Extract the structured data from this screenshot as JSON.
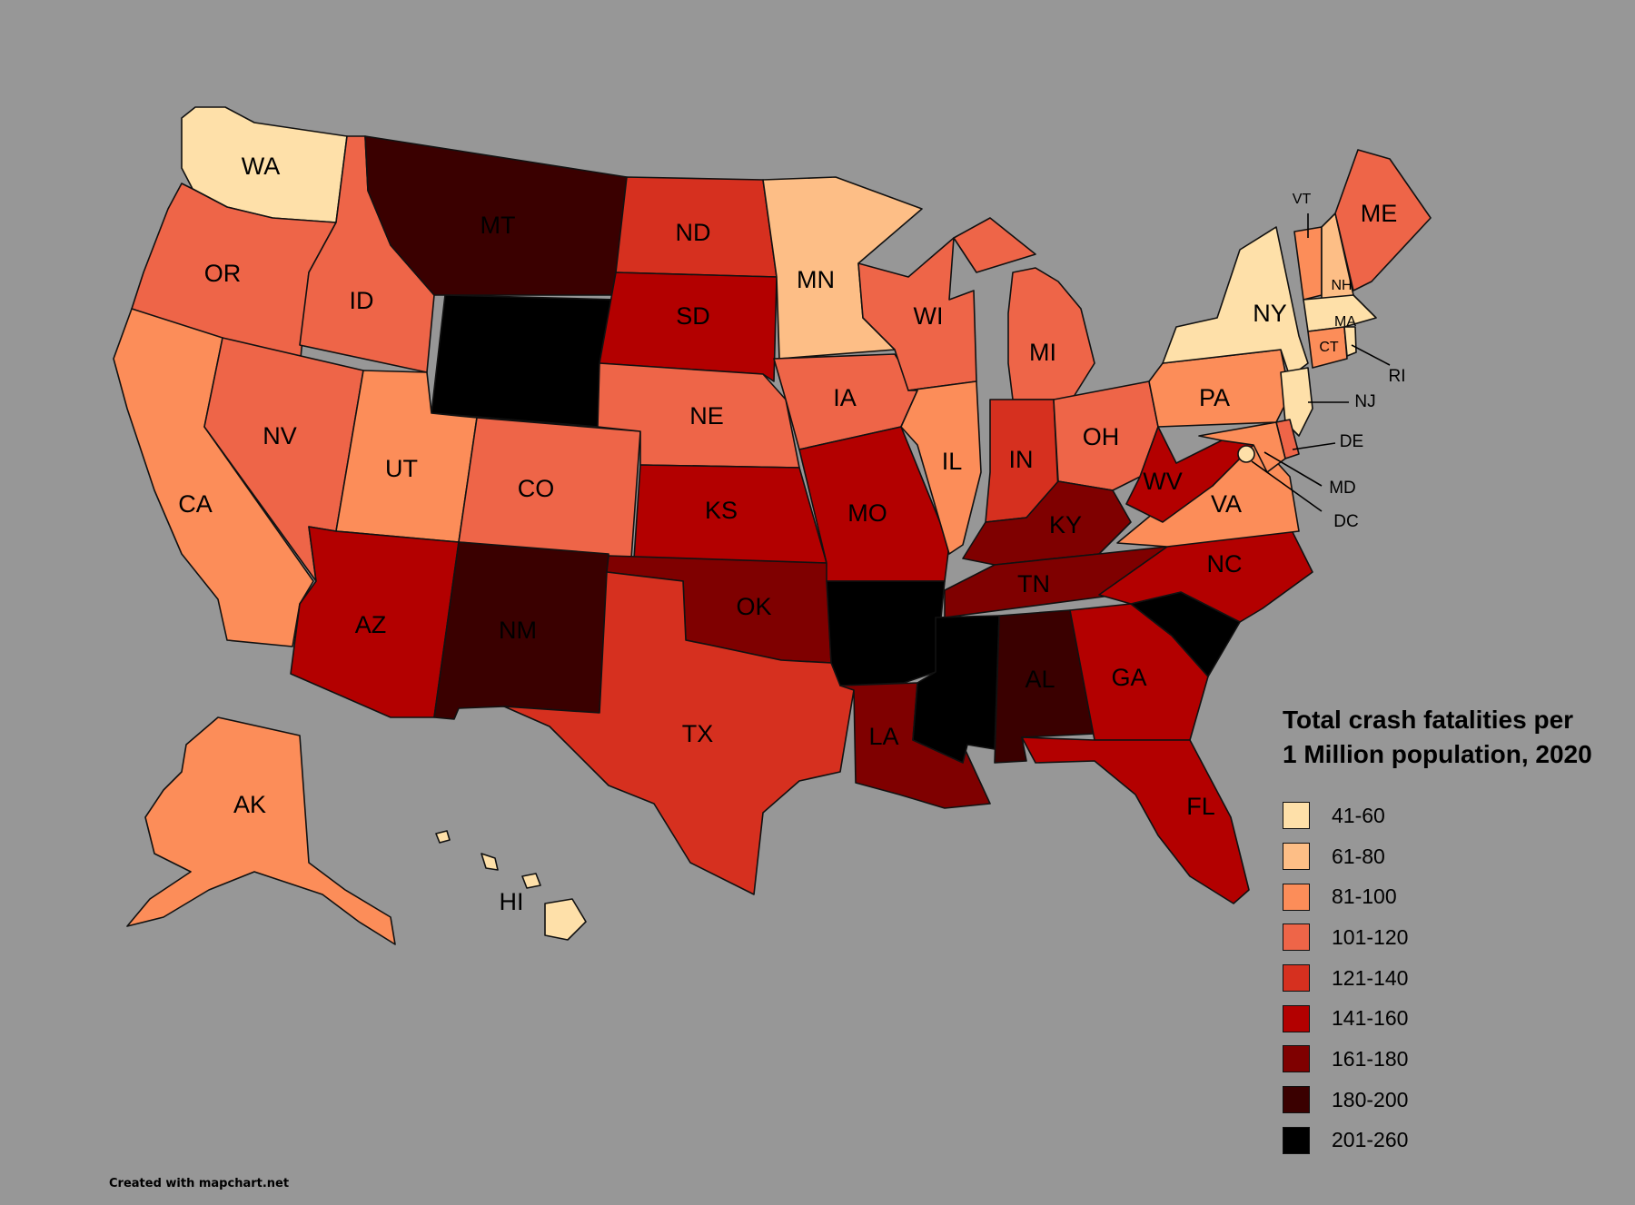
{
  "legend": {
    "title_line1": "Total crash fatalities per",
    "title_line2": "1 Million population, 2020",
    "bins": [
      {
        "label": "41-60",
        "color": "#fee0a9"
      },
      {
        "label": "61-80",
        "color": "#fdbe86"
      },
      {
        "label": "81-100",
        "color": "#fc8d59"
      },
      {
        "label": "101-120",
        "color": "#ee6548"
      },
      {
        "label": "121-140",
        "color": "#d6301f"
      },
      {
        "label": "141-160",
        "color": "#b30000"
      },
      {
        "label": "161-180",
        "color": "#7f0000"
      },
      {
        "label": "180-200",
        "color": "#3a0000"
      },
      {
        "label": "201-260",
        "color": "#000000"
      }
    ]
  },
  "credit": "Created with mapchart.net",
  "states": {
    "WA": 0,
    "OR": 3,
    "CA": 2,
    "NV": 3,
    "ID": 3,
    "MT": 7,
    "WY": 8,
    "UT": 2,
    "AZ": 5,
    "NM": 7,
    "CO": 3,
    "ND": 4,
    "SD": 5,
    "NE": 3,
    "KS": 5,
    "OK": 6,
    "TX": 4,
    "MN": 1,
    "IA": 3,
    "MO": 5,
    "AR": 8,
    "LA": 6,
    "WI": 3,
    "IL": 2,
    "MI": 3,
    "IN": 4,
    "OH": 3,
    "KY": 6,
    "TN": 6,
    "MS": 8,
    "AL": 7,
    "GA": 5,
    "FL": 5,
    "SC": 8,
    "NC": 5,
    "VA": 2,
    "WV": 5,
    "PA": 2,
    "NY": 0,
    "NJ": 0,
    "DE": 3,
    "MD": 2,
    "DC": 0,
    "VT": 2,
    "NH": 1,
    "ME": 3,
    "MA": 0,
    "CT": 2,
    "RI": 0,
    "AK": 2,
    "HI": 0
  },
  "labels": {
    "WA": "WA",
    "OR": "OR",
    "CA": "CA",
    "NV": "NV",
    "ID": "ID",
    "MT": "MT",
    "UT": "UT",
    "AZ": "AZ",
    "NM": "NM",
    "CO": "CO",
    "ND": "ND",
    "SD": "SD",
    "NE": "NE",
    "KS": "KS",
    "OK": "OK",
    "TX": "TX",
    "MN": "MN",
    "IA": "IA",
    "MO": "MO",
    "LA": "LA",
    "WI": "WI",
    "IL": "IL",
    "MI": "MI",
    "IN": "IN",
    "OH": "OH",
    "KY": "KY",
    "TN": "TN",
    "AL": "AL",
    "GA": "GA",
    "FL": "FL",
    "NC": "NC",
    "VA": "VA",
    "WV": "WV",
    "PA": "PA",
    "NY": "NY",
    "NJ": "NJ",
    "DE": "DE",
    "MD": "MD",
    "DC": "DC",
    "VT": "VT",
    "NH": "NH",
    "ME": "ME",
    "MA": "MA",
    "CT": "CT",
    "RI": "RI",
    "AK": "AK",
    "HI": "HI"
  }
}
